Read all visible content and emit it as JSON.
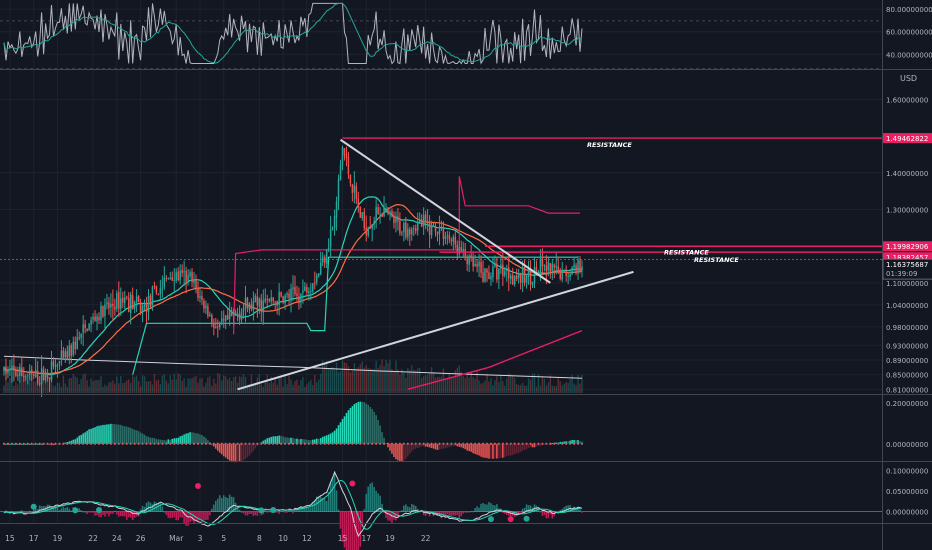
{
  "colors": {
    "background": "#131722",
    "grid": "#1e222d",
    "separator": "#434651",
    "text": "#b2b5be",
    "up": "#26a69a",
    "down": "#ef5350",
    "pink": "#e91e63",
    "aqua": "#26d7b7",
    "orange": "#ff7043",
    "white": "#d1d4dc",
    "rsi": "#b2b5be",
    "rsi_ma": "#26a69a"
  },
  "currency": "USD",
  "price_axis": {
    "labels": [
      "1.60000000",
      "1.40000000",
      "1.30000000",
      "1.10000000",
      "1.04000000",
      "0.98000000",
      "0.93000000",
      "0.89000000",
      "0.85000000",
      "0.81000000"
    ],
    "ticks": [
      1.6,
      1.4,
      1.3,
      1.1,
      1.04,
      0.98,
      0.93,
      0.89,
      0.85,
      0.81
    ],
    "range": [
      0.8,
      1.68
    ]
  },
  "rsi_axis": {
    "labels": [
      "80.00000000",
      "60.00000000",
      "40.00000000"
    ],
    "ticks": [
      80,
      60,
      40
    ],
    "range": [
      28,
      88
    ]
  },
  "macd_axis": {
    "labels": [
      "0.20000000",
      "0.00000000"
    ],
    "ticks": [
      0.2,
      0.0
    ],
    "range": [
      -0.08,
      0.24
    ]
  },
  "osc_axis": {
    "labels": [
      "0.10000000",
      "0.05000000",
      "0.00000000"
    ],
    "ticks": [
      0.1,
      0.05,
      0.0
    ],
    "range": [
      -0.025,
      0.12
    ]
  },
  "price_tags": [
    {
      "label": "1.49462822",
      "value": 1.49462822,
      "color": "#e91e63"
    },
    {
      "label": "1.19982906",
      "value": 1.19982906,
      "color": "#e91e63"
    },
    {
      "label": "1.18382457",
      "value": 1.18382457,
      "color": "#e91e63"
    },
    {
      "label": "1.16375687",
      "value": 1.16375687,
      "color": "#131722",
      "sub": "01:39:09"
    }
  ],
  "resistance": [
    {
      "label": "RESISTANCE",
      "value": 1.4946
    },
    {
      "label": "RESISTANCE",
      "value": 1.1998
    },
    {
      "label": "RESISTANCE",
      "value": 1.1838
    }
  ],
  "x_axis": {
    "labels": [
      {
        "t": "15",
        "d": 0
      },
      {
        "t": "17",
        "d": 2
      },
      {
        "t": "19",
        "d": 4
      },
      {
        "t": "22",
        "d": 7
      },
      {
        "t": "24",
        "d": 9
      },
      {
        "t": "26",
        "d": 11
      },
      {
        "t": "Mar",
        "d": 14
      },
      {
        "t": "3",
        "d": 16
      },
      {
        "t": "5",
        "d": 18
      },
      {
        "t": "8",
        "d": 21
      },
      {
        "t": "10",
        "d": 23
      },
      {
        "t": "12",
        "d": 25
      },
      {
        "t": "15",
        "d": 28
      },
      {
        "t": "17",
        "d": 30
      },
      {
        "t": "19",
        "d": 32
      },
      {
        "t": "22",
        "d": 35
      }
    ]
  },
  "chart_data": {
    "type": "candlestick",
    "bars_per_day": 6,
    "start_price": 0.86,
    "waypoints": [
      [
        0,
        0.86
      ],
      [
        18,
        0.84
      ],
      [
        30,
        0.89
      ],
      [
        45,
        1.0
      ],
      [
        60,
        1.06
      ],
      [
        70,
        1.03
      ],
      [
        78,
        1.08
      ],
      [
        84,
        1.12
      ],
      [
        94,
        1.11
      ],
      [
        108,
        0.97
      ],
      [
        120,
        1.03
      ],
      [
        150,
        1.07
      ],
      [
        159,
        1.13
      ],
      [
        167,
        1.27
      ],
      [
        171,
        1.47
      ],
      [
        176,
        1.36
      ],
      [
        182,
        1.25
      ],
      [
        190,
        1.3
      ],
      [
        200,
        1.25
      ],
      [
        212,
        1.26
      ],
      [
        222,
        1.24
      ],
      [
        236,
        1.15
      ],
      [
        242,
        1.12
      ],
      [
        252,
        1.14
      ],
      [
        262,
        1.11
      ],
      [
        272,
        1.14
      ],
      [
        282,
        1.12
      ],
      [
        293,
        1.16
      ]
    ],
    "trendlines": [
      {
        "from": [
          170,
          1.49
        ],
        "to": [
          276,
          1.1
        ],
        "color": "#d1d4dc"
      },
      {
        "from": [
          118,
          0.81
        ],
        "to": [
          318,
          1.13
        ],
        "color": "#d1d4dc"
      }
    ],
    "resistance_segments": [
      {
        "from": [
          171,
          1.4946
        ],
        "to": [
          442,
          1.4946
        ]
      },
      {
        "from": [
          243,
          1.1998
        ],
        "to": [
          442,
          1.1998
        ]
      },
      {
        "from": [
          220,
          1.1838
        ],
        "to": [
          442,
          1.1838
        ]
      }
    ],
    "step_line_pink": [
      [
        116,
        0.96
      ],
      [
        117,
        1.18
      ],
      [
        130,
        1.19
      ],
      [
        150,
        1.19
      ],
      [
        152,
        1.19
      ],
      [
        230,
        1.19
      ],
      [
        230,
        1.39
      ],
      [
        233,
        1.31
      ],
      [
        265,
        1.31
      ],
      [
        275,
        1.29
      ],
      [
        291,
        1.29
      ]
    ],
    "step_line_aqua": [
      [
        65,
        0.85
      ],
      [
        72,
        0.99
      ],
      [
        85,
        0.99
      ],
      [
        120,
        0.99
      ],
      [
        153,
        0.99
      ],
      [
        155,
        0.97
      ],
      [
        162,
        0.97
      ],
      [
        164,
        1.17
      ],
      [
        230,
        1.17
      ],
      [
        290,
        1.17
      ]
    ],
    "ma_pink_rising": [
      [
        204,
        0.81
      ],
      [
        245,
        0.87
      ],
      [
        292,
        0.97
      ]
    ],
    "volume_ma": [
      [
        0,
        0.9
      ],
      [
        40,
        0.89
      ],
      [
        90,
        0.88
      ],
      [
        150,
        0.87
      ],
      [
        190,
        0.86
      ],
      [
        240,
        0.85
      ],
      [
        292,
        0.84
      ]
    ]
  },
  "indicators": {
    "rsi_base": 50,
    "macd_base": 0,
    "osc_markers": [
      {
        "bar": 15,
        "value": 0.012,
        "color": "#26a69a"
      },
      {
        "bar": 36,
        "value": 0.003,
        "color": "#26a69a"
      },
      {
        "bar": 48,
        "value": 0.004,
        "color": "#26a69a"
      },
      {
        "bar": 98,
        "value": 0.062,
        "color": "#e91e63"
      },
      {
        "bar": 130,
        "value": 0.003,
        "color": "#26a69a"
      },
      {
        "bar": 136,
        "value": 0.004,
        "color": "#26a69a"
      },
      {
        "bar": 176,
        "value": 0.068,
        "color": "#e91e63"
      },
      {
        "bar": 246,
        "value": -0.018,
        "color": "#26a69a"
      },
      {
        "bar": 256,
        "value": -0.018,
        "color": "#e91e63"
      },
      {
        "bar": 264,
        "value": -0.017,
        "color": "#26a69a"
      }
    ]
  }
}
